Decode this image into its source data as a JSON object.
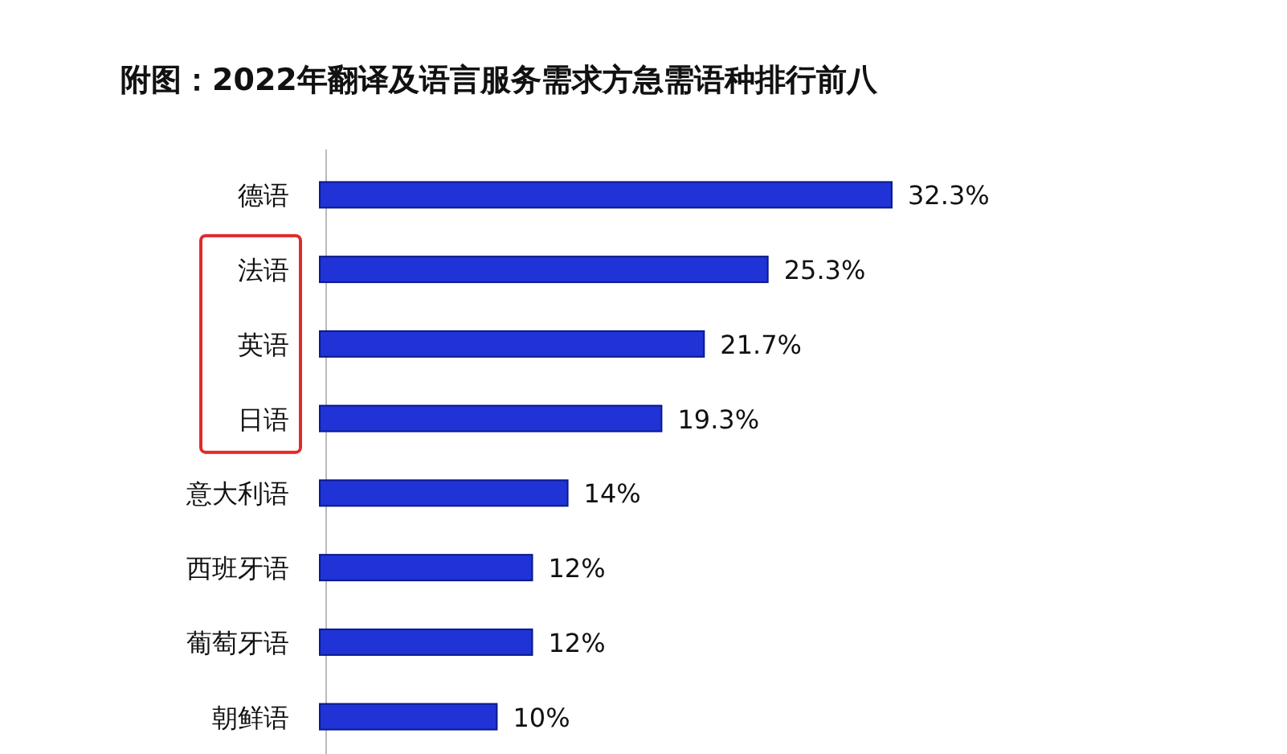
{
  "chart_data": {
    "type": "bar",
    "orientation": "horizontal",
    "title": "附图：2022年翻译及语言服务需求方急需语种排行前八",
    "categories": [
      "德语",
      "法语",
      "英语",
      "日语",
      "意大利语",
      "西班牙语",
      "葡萄牙语",
      "朝鲜语"
    ],
    "values": [
      32.3,
      25.3,
      21.7,
      19.3,
      14,
      12,
      12,
      10
    ],
    "value_labels": [
      "32.3%",
      "25.3%",
      "21.7%",
      "19.3%",
      "14%",
      "12%",
      "12%",
      "10%"
    ],
    "color": "#1f33d6"
  }
}
